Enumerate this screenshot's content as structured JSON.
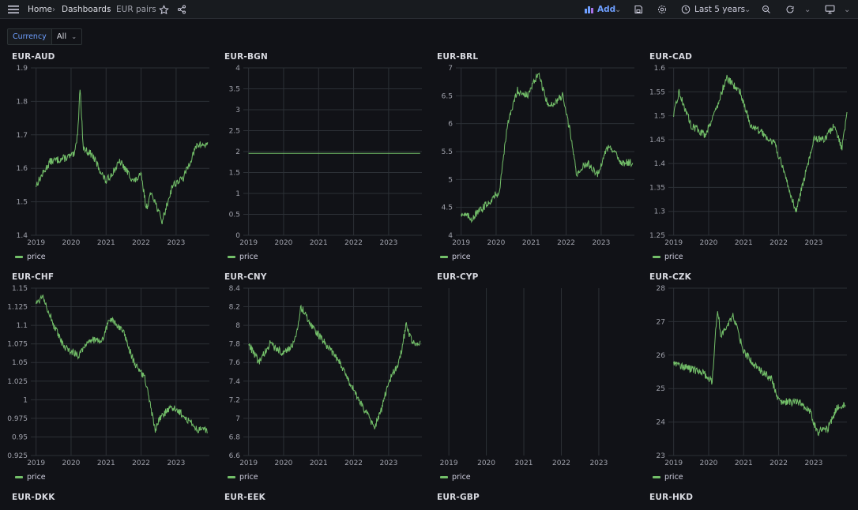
{
  "topbar": {
    "menu_icon": "hamburger-icon",
    "breadcrumbs": [
      "Home",
      "Dashboards",
      "EUR pairs"
    ],
    "add_label": "Add",
    "time_range": "Last 5 years"
  },
  "variables": {
    "label": "Currency",
    "value": "All"
  },
  "colors": {
    "series": "#73bf69",
    "accent": "#6e9fff",
    "grid": "#2c3036"
  },
  "chart_data": [
    {
      "title": "EUR-AUD",
      "type": "line",
      "x": [
        2019.0,
        2019.4,
        2019.8,
        2020.1,
        2020.2,
        2020.25,
        2020.35,
        2020.6,
        2021.0,
        2021.4,
        2021.8,
        2022.0,
        2022.15,
        2022.3,
        2022.6,
        2022.9,
        2023.2,
        2023.6,
        2023.9
      ],
      "y": [
        1.55,
        1.62,
        1.63,
        1.64,
        1.72,
        1.85,
        1.66,
        1.64,
        1.56,
        1.62,
        1.56,
        1.58,
        1.48,
        1.53,
        1.44,
        1.55,
        1.57,
        1.67,
        1.67
      ],
      "ylim": [
        1.4,
        1.9
      ],
      "yticks": [
        "1.4",
        "1.5",
        "1.6",
        "1.7",
        "1.8",
        "1.9"
      ],
      "xticks": [
        "2019",
        "2020",
        "2021",
        "2022",
        "2023"
      ],
      "series": [
        {
          "name": "price"
        }
      ]
    },
    {
      "title": "EUR-BGN",
      "type": "line",
      "x": [
        2019.0,
        2023.9
      ],
      "y": [
        1.9558,
        1.9558
      ],
      "ylim": [
        0,
        4
      ],
      "yticks": [
        "0",
        "0.5",
        "1",
        "1.5",
        "2",
        "2.5",
        "3",
        "3.5",
        "4"
      ],
      "xticks": [
        "2019",
        "2020",
        "2021",
        "2022",
        "2023"
      ],
      "series": [
        {
          "name": "price"
        }
      ]
    },
    {
      "title": "EUR-BRL",
      "type": "line",
      "x": [
        2019.0,
        2019.3,
        2019.8,
        2020.1,
        2020.3,
        2020.6,
        2020.9,
        2021.2,
        2021.5,
        2021.9,
        2022.1,
        2022.3,
        2022.6,
        2022.9,
        2023.2,
        2023.6,
        2023.9
      ],
      "y": [
        4.4,
        4.3,
        4.6,
        4.8,
        5.9,
        6.6,
        6.5,
        6.9,
        6.3,
        6.5,
        5.9,
        5.1,
        5.3,
        5.1,
        5.6,
        5.3,
        5.3
      ],
      "ylim": [
        4,
        7
      ],
      "yticks": [
        "4",
        "4.5",
        "5",
        "5.5",
        "6",
        "6.5",
        "7"
      ],
      "xticks": [
        "2019",
        "2020",
        "2021",
        "2022",
        "2023"
      ],
      "series": [
        {
          "name": "price"
        }
      ]
    },
    {
      "title": "EUR-CAD",
      "type": "line",
      "x": [
        2019.0,
        2019.15,
        2019.5,
        2019.9,
        2020.3,
        2020.5,
        2020.9,
        2021.2,
        2021.6,
        2021.9,
        2022.2,
        2022.5,
        2022.8,
        2023.0,
        2023.3,
        2023.6,
        2023.8,
        2023.95
      ],
      "y": [
        1.5,
        1.55,
        1.48,
        1.46,
        1.53,
        1.58,
        1.55,
        1.48,
        1.46,
        1.44,
        1.37,
        1.3,
        1.39,
        1.45,
        1.45,
        1.48,
        1.43,
        1.5
      ],
      "ylim": [
        1.25,
        1.6
      ],
      "yticks": [
        "1.25",
        "1.3",
        "1.35",
        "1.4",
        "1.45",
        "1.5",
        "1.55",
        "1.6"
      ],
      "xticks": [
        "2019",
        "2020",
        "2021",
        "2022",
        "2023"
      ],
      "series": [
        {
          "name": "price"
        }
      ]
    },
    {
      "title": "EUR-CHF",
      "type": "line",
      "x": [
        2019.0,
        2019.2,
        2019.5,
        2019.8,
        2020.2,
        2020.5,
        2020.9,
        2021.1,
        2021.5,
        2021.8,
        2022.1,
        2022.4,
        2022.6,
        2022.9,
        2023.2,
        2023.6,
        2023.9
      ],
      "y": [
        1.13,
        1.14,
        1.1,
        1.07,
        1.06,
        1.08,
        1.08,
        1.11,
        1.09,
        1.05,
        1.03,
        0.96,
        0.98,
        0.99,
        0.98,
        0.96,
        0.96
      ],
      "ylim": [
        0.925,
        1.15
      ],
      "yticks": [
        "0.925",
        "0.95",
        "0.975",
        "1",
        "1.025",
        "1.05",
        "1.075",
        "1.1",
        "1.125",
        "1.15"
      ],
      "xticks": [
        "2019",
        "2020",
        "2021",
        "2022",
        "2023"
      ],
      "series": [
        {
          "name": "price"
        }
      ]
    },
    {
      "title": "EUR-CNY",
      "type": "line",
      "x": [
        2019.0,
        2019.3,
        2019.6,
        2020.0,
        2020.3,
        2020.5,
        2020.8,
        2021.2,
        2021.6,
        2022.0,
        2022.3,
        2022.6,
        2022.8,
        2023.0,
        2023.3,
        2023.5,
        2023.7,
        2023.9
      ],
      "y": [
        7.8,
        7.6,
        7.8,
        7.7,
        7.8,
        8.2,
        8.0,
        7.8,
        7.6,
        7.3,
        7.1,
        6.9,
        7.1,
        7.4,
        7.6,
        8.0,
        7.8,
        7.8
      ],
      "ylim": [
        6.6,
        8.4
      ],
      "yticks": [
        "6.6",
        "6.8",
        "7",
        "7.2",
        "7.4",
        "7.6",
        "7.8",
        "8",
        "8.2",
        "8.4"
      ],
      "xticks": [
        "2019",
        "2020",
        "2021",
        "2022",
        "2023"
      ],
      "series": [
        {
          "name": "price"
        }
      ]
    },
    {
      "title": "EUR-CYP",
      "type": "line",
      "x": [],
      "y": [],
      "yticks": [],
      "xticks": [
        "2019",
        "2020",
        "2021",
        "2022",
        "2023"
      ],
      "series": [
        {
          "name": "price"
        }
      ]
    },
    {
      "title": "EUR-CZK",
      "type": "line",
      "x": [
        2019.0,
        2019.4,
        2019.8,
        2020.1,
        2020.25,
        2020.35,
        2020.5,
        2020.7,
        2021.0,
        2021.4,
        2021.8,
        2022.0,
        2022.2,
        2022.6,
        2022.9,
        2023.1,
        2023.4,
        2023.7,
        2023.9
      ],
      "y": [
        25.8,
        25.6,
        25.5,
        25.2,
        27.4,
        26.6,
        26.8,
        27.2,
        26.1,
        25.6,
        25.3,
        24.6,
        24.6,
        24.6,
        24.3,
        23.7,
        23.8,
        24.5,
        24.5
      ],
      "ylim": [
        23,
        28
      ],
      "yticks": [
        "23",
        "24",
        "25",
        "26",
        "27",
        "28"
      ],
      "xticks": [
        "2019",
        "2020",
        "2021",
        "2022",
        "2023"
      ],
      "series": [
        {
          "name": "price"
        }
      ]
    },
    {
      "title": "EUR-DKK"
    },
    {
      "title": "EUR-EEK"
    },
    {
      "title": "EUR-GBP"
    },
    {
      "title": "EUR-HKD"
    }
  ]
}
